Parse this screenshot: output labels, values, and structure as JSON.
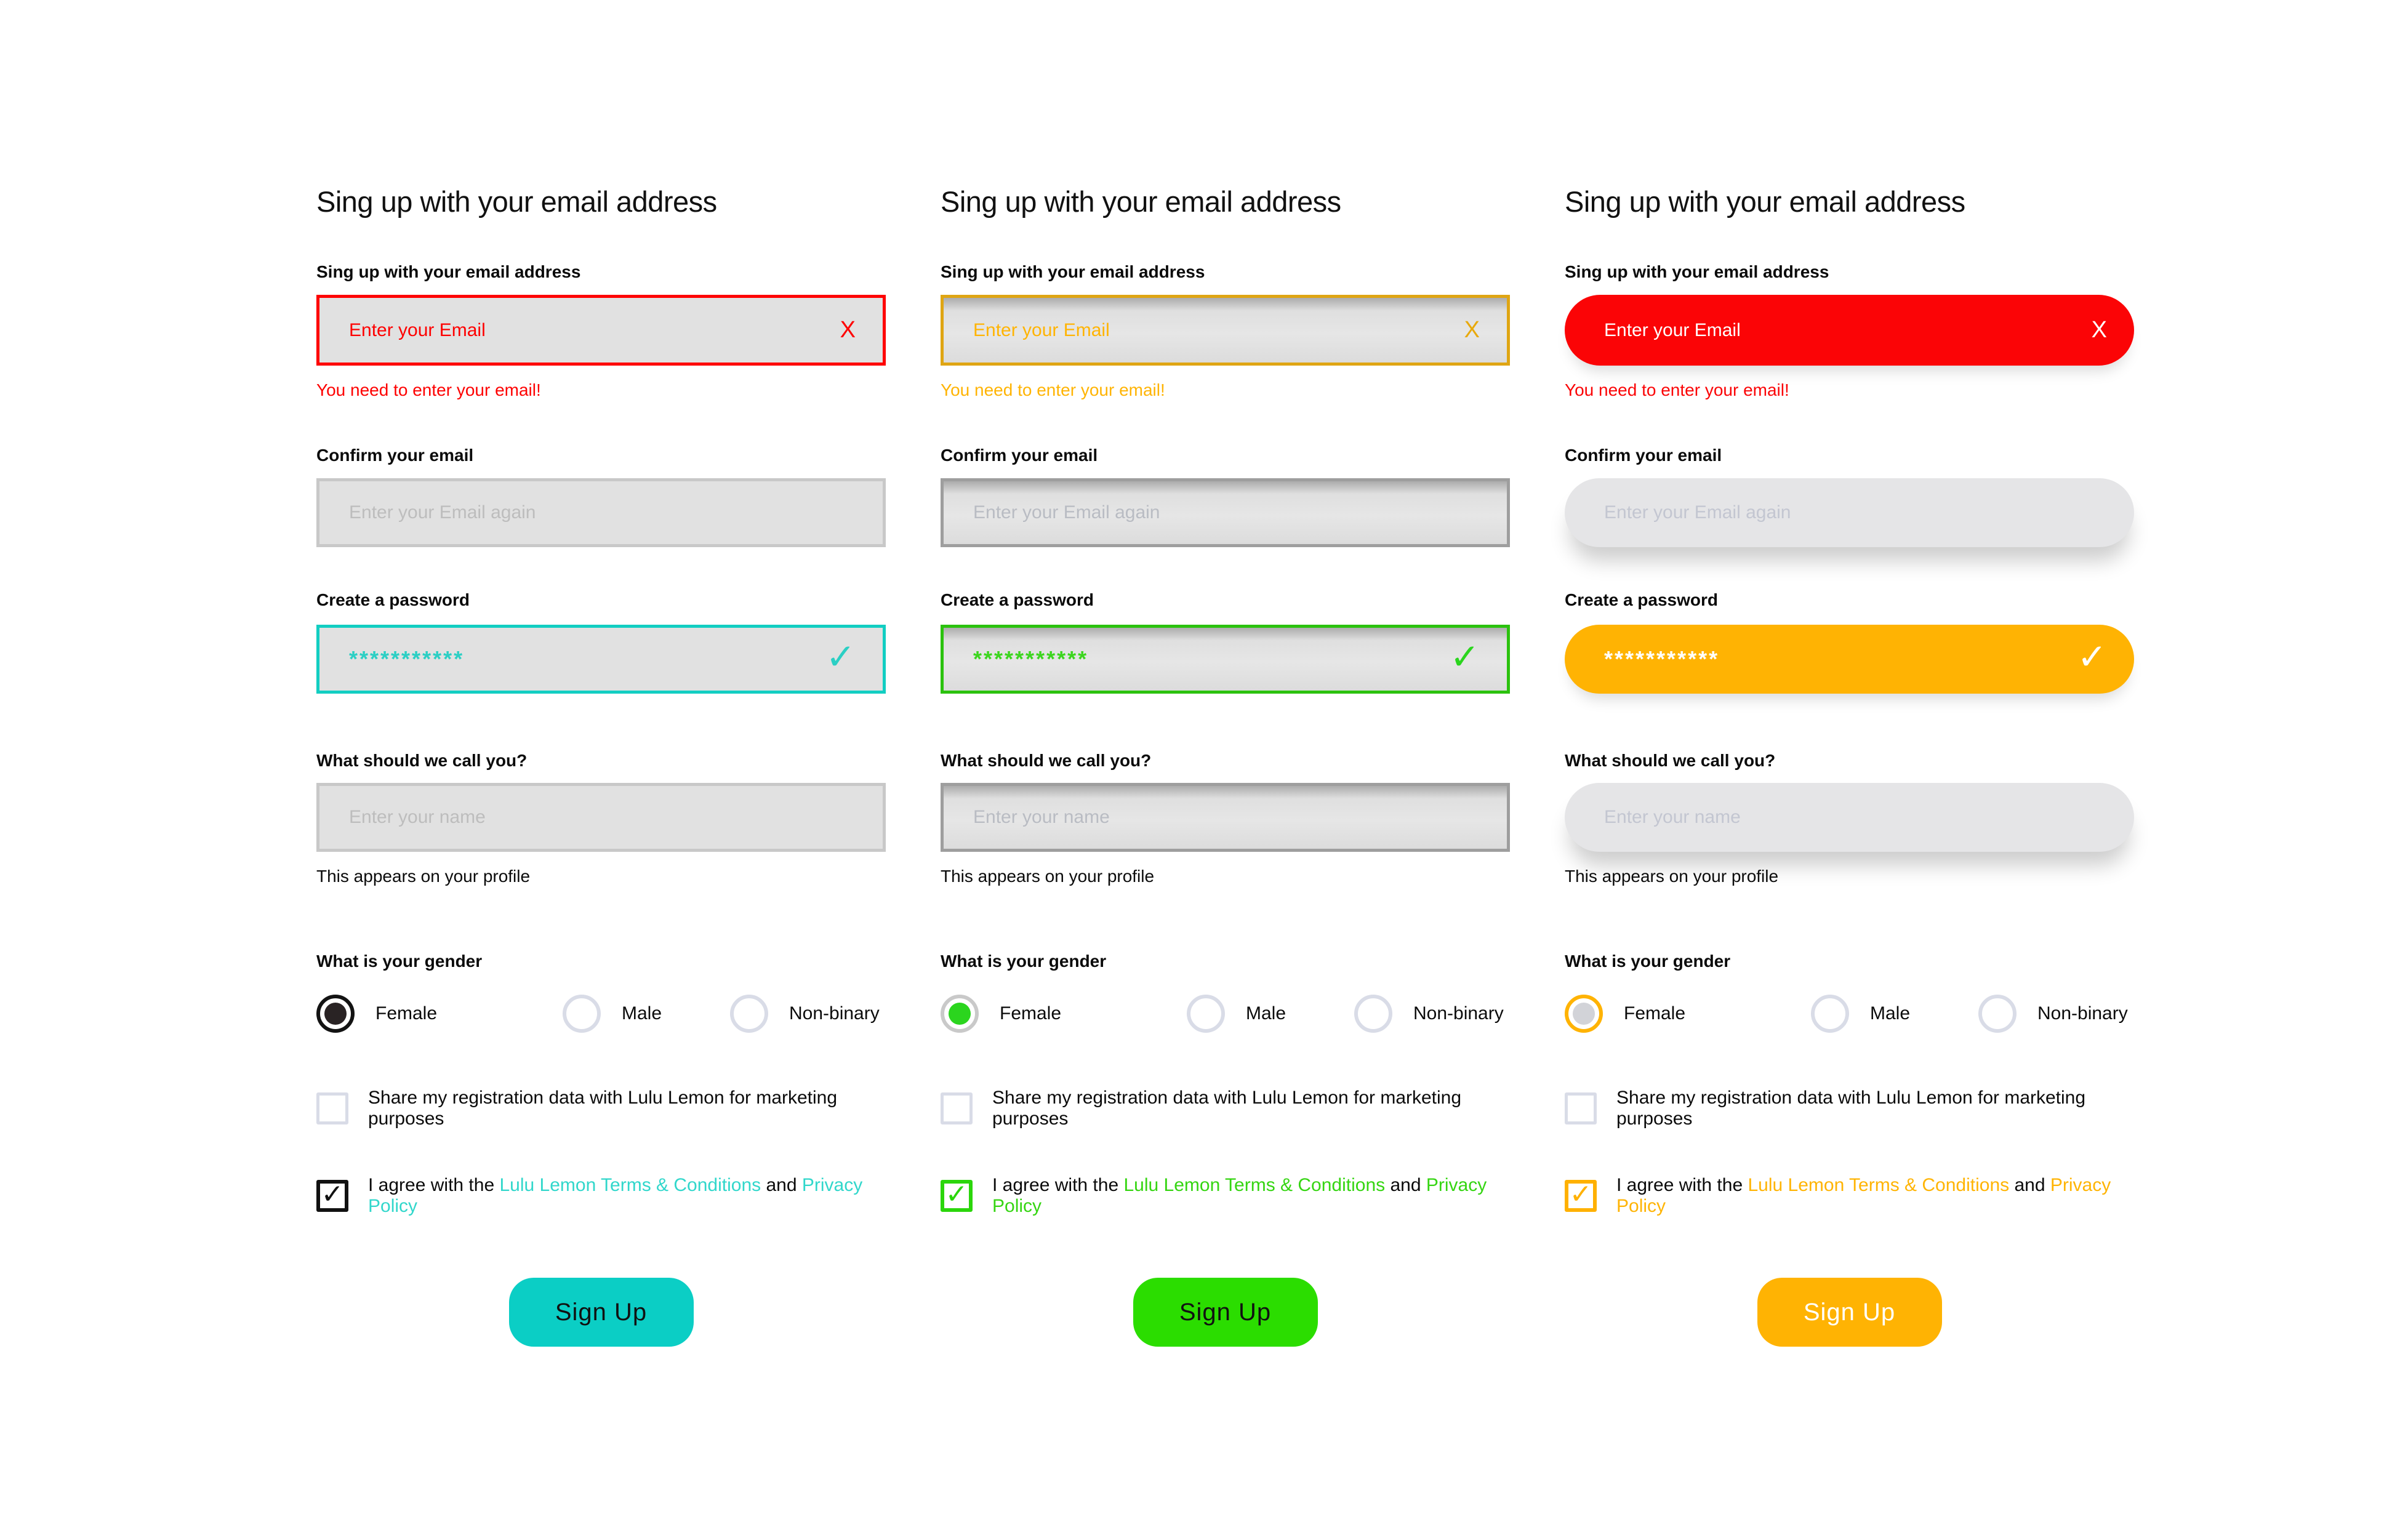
{
  "page": {
    "background": "#FFFFFF"
  },
  "shared": {
    "unselected_ring": "#D9DCE7",
    "unchecked_border": "#D9DCE7"
  },
  "columns": [
    {
      "variant": "flat",
      "heading": "Sing up with your email address",
      "email": {
        "label": "Sing up with your email address",
        "placeholder": "Enter your Email",
        "icon": "X",
        "error": "You need to enter your email!"
      },
      "confirm": {
        "label": "Confirm your email",
        "placeholder": "Enter your Email again"
      },
      "password": {
        "label": "Create a password",
        "value": "***********",
        "icon": "✓"
      },
      "name": {
        "label": "What should we call you?",
        "placeholder": "Enter your name",
        "helper": "This appears on your profile"
      },
      "gender": {
        "label": "What is your gender",
        "options": [
          {
            "label": "Female",
            "selected": true
          },
          {
            "label": "Male",
            "selected": false
          },
          {
            "label": "Non-binary",
            "selected": false
          }
        ]
      },
      "share": {
        "text": "Share my registration data with Lulu Lemon for marketing purposes",
        "checked": false
      },
      "agree": {
        "prefix": "I agree with the ",
        "terms_link": "Lulu Lemon Terms & Conditions",
        "middle": " and ",
        "privacy_link": "Privacy Policy",
        "checked": true
      },
      "button": {
        "label": "Sign Up"
      },
      "colors": {
        "accent_link": "#31D7CB",
        "email_border": "#FE0000",
        "email_bg": "#E1E1E1",
        "email_text": "#FE0000",
        "email_icon": "#FE0000",
        "error": "#FE0000",
        "plain_border": "#C8C8C8",
        "plain_bg": "#E1E1E1",
        "plain_text": "#BDBDBD",
        "pw_border": "#12CEC2",
        "pw_bg": "#E1E1E1",
        "pw_text": "#2BCFC4",
        "pw_icon": "#2BCFC4",
        "radio_ring": "#131313",
        "radio_dot": "#292324",
        "check_border": "#111111",
        "check_mark": "#111111",
        "btn_bg": "#0BCEC5",
        "btn_text": "#111111"
      }
    },
    {
      "variant": "inset",
      "heading": "Sing up with your email address",
      "email": {
        "label": "Sing up with your email address",
        "placeholder": "Enter your Email",
        "icon": "X",
        "error": "You need to enter your email!"
      },
      "confirm": {
        "label": "Confirm your email",
        "placeholder": "Enter your Email again"
      },
      "password": {
        "label": "Create a password",
        "value": "***********",
        "icon": "✓"
      },
      "name": {
        "label": "What should we call you?",
        "placeholder": "Enter your name",
        "helper": "This appears on your profile"
      },
      "gender": {
        "label": "What is your gender",
        "options": [
          {
            "label": "Female",
            "selected": true
          },
          {
            "label": "Male",
            "selected": false
          },
          {
            "label": "Non-binary",
            "selected": false
          }
        ]
      },
      "share": {
        "text": "Share my registration data with Lulu Lemon for marketing purposes",
        "checked": false
      },
      "agree": {
        "prefix": "I agree with the ",
        "terms_link": "Lulu Lemon Terms & Conditions",
        "middle": " and ",
        "privacy_link": "Privacy Policy",
        "checked": true
      },
      "button": {
        "label": "Sign Up"
      },
      "colors": {
        "accent_link": "#35D512",
        "email_border": "#DFA513",
        "email_bg": "#E3E3E3",
        "email_text": "#FFB404",
        "email_icon": "#E8A90C",
        "error": "#FFB404",
        "plain_border": "#9E9E9E",
        "plain_bg": "#E3E3E3",
        "plain_text": "#B9BCC3",
        "pw_border": "#2BC20E",
        "pw_bg": "#E3E3E3",
        "pw_text": "#3BD51E",
        "pw_icon": "#2BD51E",
        "radio_ring": "#C9C9C9",
        "radio_dot": "#2BD51E",
        "check_border": "#2BD60B",
        "check_mark": "#2BD60B",
        "btn_bg": "#2BDD00",
        "btn_text": "#111111"
      }
    },
    {
      "variant": "pill",
      "heading": "Sing up with your email address",
      "email": {
        "label": "Sing up with your email address",
        "placeholder": "Enter your Email",
        "icon": "X",
        "error": "You need to enter your email!"
      },
      "confirm": {
        "label": "Confirm your email",
        "placeholder": "Enter your Email again"
      },
      "password": {
        "label": "Create a password",
        "value": "***********",
        "icon": "✓"
      },
      "name": {
        "label": "What should we call you?",
        "placeholder": "Enter your name",
        "helper": "This appears on your profile"
      },
      "gender": {
        "label": "What is your gender",
        "options": [
          {
            "label": "Female",
            "selected": true
          },
          {
            "label": "Male",
            "selected": false
          },
          {
            "label": "Non-binary",
            "selected": false
          }
        ]
      },
      "share": {
        "text": "Share my registration data with Lulu Lemon for marketing purposes",
        "checked": false
      },
      "agree": {
        "prefix": "I agree with the ",
        "terms_link": "Lulu Lemon Terms & Conditions",
        "middle": " and ",
        "privacy_link": "Privacy Policy",
        "checked": true
      },
      "button": {
        "label": "Sign Up"
      },
      "colors": {
        "accent_link": "#FFB404",
        "email_border": "transparent",
        "email_bg": "#FB0406",
        "email_text": "#FFFFFF",
        "email_icon": "#FFFFFF",
        "error": "#FB0406",
        "plain_border": "transparent",
        "plain_bg": "#E5E5E7",
        "plain_text": "#C3C6D1",
        "pw_border": "transparent",
        "pw_bg": "#FFB303",
        "pw_text": "#FFFFFF",
        "pw_icon": "#FFFFFF",
        "radio_ring": "#FFB303",
        "radio_dot": "#D2D3D8",
        "check_border": "#FFB100",
        "check_mark": "#FFB100",
        "btn_bg": "#FFB303",
        "btn_text": "#FFFFFF"
      }
    }
  ]
}
